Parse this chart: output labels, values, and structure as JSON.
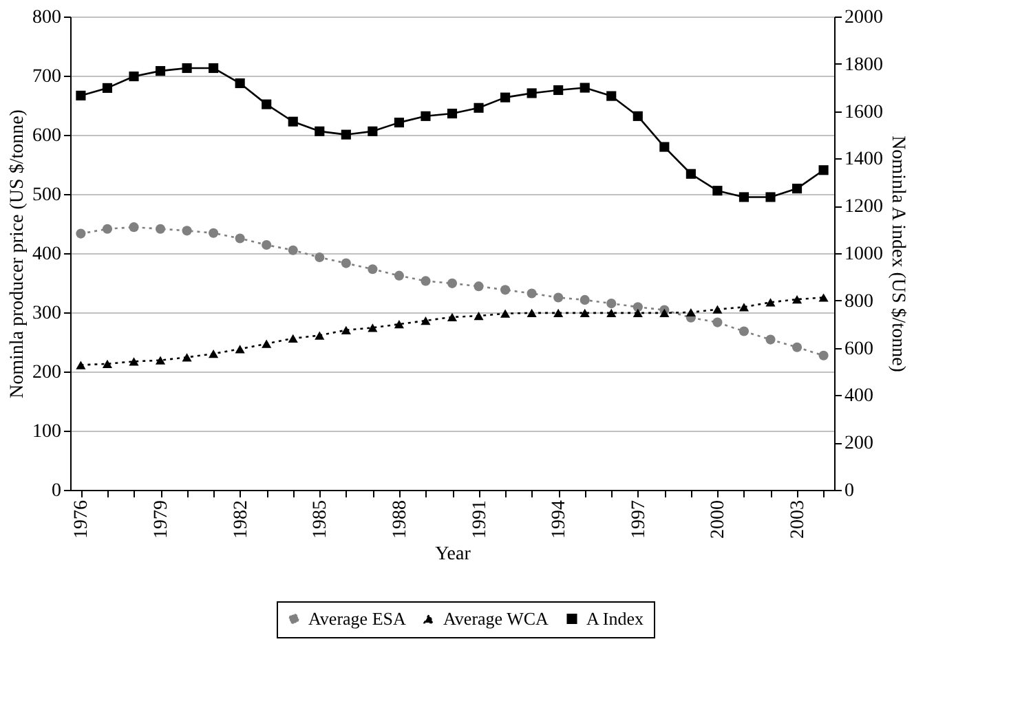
{
  "chart_data": {
    "type": "line",
    "xlabel": "Year",
    "ylabel": "Nominla producer price (US $/tonne)",
    "y2label": "Nominla A index (US $/tonne)",
    "categories": [
      "1976",
      null,
      null,
      "1979",
      null,
      null,
      "1982",
      null,
      null,
      "1985",
      null,
      null,
      "1988",
      null,
      null,
      "1991",
      null,
      null,
      "1994",
      null,
      null,
      "1997",
      null,
      null,
      "2000",
      null,
      null,
      "2003",
      null
    ],
    "series": [
      {
        "name": "Average ESA",
        "color": "#808080",
        "marker": "circle",
        "line_style": "dotted",
        "values": [
          433,
          441,
          444,
          441,
          438,
          434,
          425,
          414,
          405,
          393,
          383,
          373,
          362,
          353,
          349,
          344,
          338,
          332,
          325,
          321,
          315,
          309,
          304,
          291,
          283,
          268,
          254,
          241,
          227
        ]
      },
      {
        "name": "Average WCA",
        "color": "#000000",
        "marker": "triangle",
        "line_style": "dotted",
        "values": [
          211,
          213,
          217,
          219,
          224,
          230,
          238,
          247,
          256,
          261,
          270,
          274,
          280,
          286,
          292,
          294,
          298,
          299,
          299,
          299,
          299,
          299,
          299,
          300,
          305,
          309,
          317,
          322,
          325
        ]
      },
      {
        "name": "A Index",
        "color": "#000000",
        "marker": "square",
        "line_style": "solid",
        "axis": "y2",
        "values": [
          1666,
          1698,
          1747,
          1770,
          1782,
          1782,
          1718,
          1629,
          1556,
          1515,
          1501,
          1515,
          1552,
          1579,
          1590,
          1614,
          1658,
          1676,
          1689,
          1699,
          1664,
          1579,
          1449,
          1335,
          1264,
          1237,
          1237,
          1273,
          1351
        ]
      }
    ],
    "ylim": [
      0,
      800
    ],
    "yticks": [
      0,
      100,
      200,
      300,
      400,
      500,
      600,
      700,
      800
    ],
    "y2lim": [
      0,
      2000
    ],
    "y2ticks": [
      0,
      200,
      400,
      600,
      800,
      1000,
      1200,
      1400,
      1600,
      1800,
      2000
    ],
    "grid": "y",
    "legend": "bottom"
  }
}
